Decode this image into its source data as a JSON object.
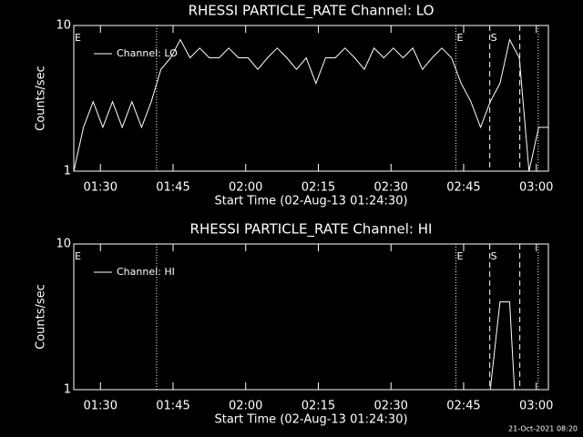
{
  "chart_data": [
    {
      "type": "line",
      "title": "RHESSI PARTICLE_RATE Channel: LO",
      "xlabel": "Start Time (02-Aug-13 01:24:30)",
      "ylabel": "Counts/sec",
      "log_y": true,
      "ylim": [
        1,
        10
      ],
      "yticks": [
        1,
        10
      ],
      "xlim": [
        84.5,
        182.5
      ],
      "xticks": [
        {
          "value": 90,
          "label": "01:30"
        },
        {
          "value": 105,
          "label": "01:45"
        },
        {
          "value": 120,
          "label": "02:00"
        },
        {
          "value": 135,
          "label": "02:15"
        },
        {
          "value": 150,
          "label": "02:30"
        },
        {
          "value": 165,
          "label": "02:45"
        },
        {
          "value": 180,
          "label": "03:00"
        }
      ],
      "series": [
        {
          "name": "Channel: LO",
          "color": "#ffffff",
          "x": [
            84.5,
            86.5,
            88.5,
            90.5,
            92.5,
            94.5,
            96.5,
            98.5,
            100.5,
            102.5,
            104.5,
            106.5,
            108.5,
            110.5,
            112.5,
            114.5,
            116.5,
            118.5,
            120.5,
            122.5,
            124.5,
            126.5,
            128.5,
            130.5,
            132.5,
            134.5,
            136.5,
            138.5,
            140.5,
            142.5,
            144.5,
            146.5,
            148.5,
            150.5,
            152.5,
            154.5,
            156.5,
            158.5,
            160.5,
            162.5,
            164.5,
            166.5,
            168.5,
            170.5,
            172.5,
            174.5,
            176.5,
            178.5,
            180.5,
            182.5
          ],
          "values": [
            1,
            2,
            3,
            2,
            3,
            2,
            3,
            2,
            3,
            5,
            6,
            8,
            6,
            7,
            6,
            6,
            7,
            6,
            6,
            5,
            6,
            7,
            6,
            5,
            6,
            4,
            6,
            6,
            7,
            6,
            5,
            7,
            6,
            7,
            6,
            7,
            5,
            6,
            7,
            6,
            4,
            3,
            2,
            3,
            4,
            8,
            6,
            1,
            2,
            2
          ]
        }
      ],
      "markers": [
        {
          "x": 84.5,
          "style": "none",
          "label": "E"
        },
        {
          "x": 101.6,
          "style": "dotted"
        },
        {
          "x": 163.4,
          "style": "dotted",
          "label": "E"
        },
        {
          "x": 170.4,
          "style": "dashed",
          "label": "S"
        },
        {
          "x": 176.6,
          "style": "dashed"
        },
        {
          "x": 180.4,
          "style": "dotted"
        }
      ]
    },
    {
      "type": "line",
      "title": "RHESSI PARTICLE_RATE Channel: HI",
      "xlabel": "Start Time (02-Aug-13 01:24:30)",
      "ylabel": "Counts/sec",
      "log_y": true,
      "ylim": [
        1,
        10
      ],
      "yticks": [
        1,
        10
      ],
      "xlim": [
        84.5,
        182.5
      ],
      "xticks": [
        {
          "value": 90,
          "label": "01:30"
        },
        {
          "value": 105,
          "label": "01:45"
        },
        {
          "value": 120,
          "label": "02:00"
        },
        {
          "value": 135,
          "label": "02:15"
        },
        {
          "value": 150,
          "label": "02:30"
        },
        {
          "value": 165,
          "label": "02:45"
        },
        {
          "value": 180,
          "label": "03:00"
        }
      ],
      "series": [
        {
          "name": "Channel: HI",
          "color": "#ffffff",
          "x": [
            170.5,
            171.5,
            172.5,
            174.5,
            175.5
          ],
          "values": [
            1,
            2,
            4,
            4,
            1
          ]
        }
      ],
      "markers": [
        {
          "x": 84.5,
          "style": "none",
          "label": "E"
        },
        {
          "x": 101.6,
          "style": "dotted"
        },
        {
          "x": 163.4,
          "style": "dotted",
          "label": "E"
        },
        {
          "x": 170.4,
          "style": "dashed",
          "label": "S"
        },
        {
          "x": 176.6,
          "style": "dashed"
        },
        {
          "x": 180.4,
          "style": "dotted"
        }
      ]
    }
  ],
  "timestamp": "21-Oct-2021 08:20"
}
